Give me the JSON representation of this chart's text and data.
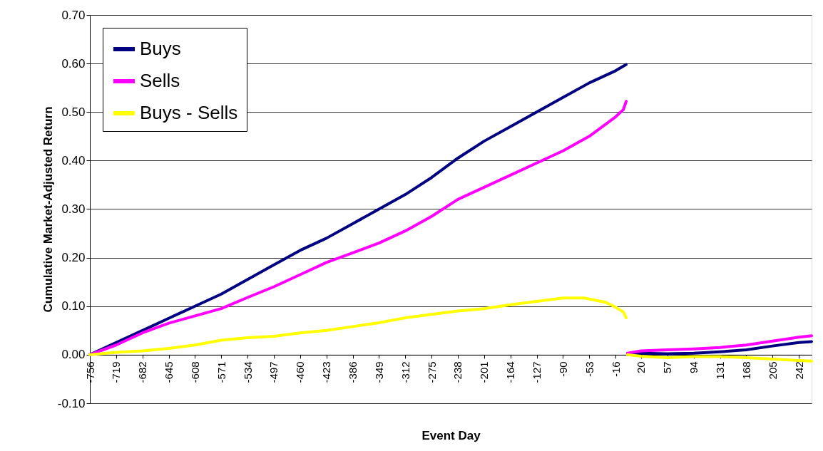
{
  "chart_data": {
    "type": "line",
    "xlabel": "Event Day",
    "ylabel": "Cumulative Market-Adjusted Return",
    "series": [
      {
        "name": "Buys",
        "color": "#000080",
        "x": [
          -756,
          -719,
          -682,
          -645,
          -608,
          -571,
          -534,
          -497,
          -460,
          -423,
          -386,
          -349,
          -312,
          -275,
          -238,
          -201,
          -164,
          -127,
          -90,
          -53,
          -16,
          -1,
          0,
          1,
          20,
          57,
          94,
          131,
          168,
          205,
          242,
          260
        ],
        "values": [
          0,
          0.025,
          0.05,
          0.075,
          0.1,
          0.125,
          0.155,
          0.185,
          0.215,
          0.24,
          0.27,
          0.3,
          0.33,
          0.365,
          0.405,
          0.44,
          0.47,
          0.5,
          0.53,
          0.56,
          0.585,
          0.598,
          null,
          0.0,
          0.003,
          0.002,
          0.003,
          0.006,
          0.01,
          0.018,
          0.025,
          0.027
        ]
      },
      {
        "name": "Sells",
        "color": "#ff00ff",
        "x": [
          -756,
          -719,
          -682,
          -645,
          -608,
          -571,
          -534,
          -497,
          -460,
          -423,
          -386,
          -349,
          -312,
          -275,
          -238,
          -201,
          -164,
          -127,
          -90,
          -53,
          -16,
          -5,
          -1,
          0,
          1,
          20,
          57,
          94,
          131,
          168,
          205,
          242,
          260
        ],
        "values": [
          0,
          0.02,
          0.045,
          0.065,
          0.08,
          0.095,
          0.118,
          0.14,
          0.165,
          0.19,
          0.21,
          0.23,
          0.255,
          0.285,
          0.32,
          0.345,
          0.37,
          0.395,
          0.42,
          0.45,
          0.49,
          0.505,
          0.522,
          null,
          0.003,
          0.008,
          0.01,
          0.012,
          0.015,
          0.02,
          0.028,
          0.036,
          0.039
        ]
      },
      {
        "name": "Buys - Sells",
        "color": "#ffff00",
        "x": [
          -756,
          -719,
          -682,
          -645,
          -608,
          -571,
          -534,
          -497,
          -460,
          -423,
          -386,
          -349,
          -312,
          -275,
          -238,
          -201,
          -164,
          -127,
          -90,
          -60,
          -30,
          -16,
          -5,
          -1,
          0,
          1,
          20,
          57,
          94,
          131,
          168,
          205,
          242,
          260
        ],
        "values": [
          0,
          0.005,
          0.008,
          0.013,
          0.02,
          0.03,
          0.035,
          0.038,
          0.045,
          0.05,
          0.058,
          0.066,
          0.076,
          0.083,
          0.09,
          0.095,
          0.103,
          0.11,
          0.117,
          0.117,
          0.108,
          0.098,
          0.088,
          0.076,
          null,
          0.0,
          -0.003,
          -0.006,
          -0.004,
          -0.004,
          -0.006,
          -0.009,
          -0.012,
          -0.013
        ]
      }
    ],
    "xlim": [
      -756,
      260
    ],
    "xticks": [
      -756,
      -719,
      -682,
      -645,
      -608,
      -571,
      -534,
      -497,
      -460,
      -423,
      -386,
      -349,
      -312,
      -275,
      -238,
      -201,
      -164,
      -127,
      -90,
      -53,
      -16,
      20,
      57,
      94,
      131,
      168,
      205,
      242
    ],
    "ylim": [
      -0.1,
      0.7
    ],
    "yticks": [
      {
        "value": -0.1,
        "label": "-0.10"
      },
      {
        "value": 0,
        "label": "0.00"
      },
      {
        "value": 0.1,
        "label": "0.10"
      },
      {
        "value": 0.2,
        "label": "0.20"
      },
      {
        "value": 0.3,
        "label": "0.30"
      },
      {
        "value": 0.4,
        "label": "0.40"
      },
      {
        "value": 0.5,
        "label": "0.50"
      },
      {
        "value": 0.6,
        "label": "0.60"
      },
      {
        "value": 0.7,
        "label": "0.70"
      }
    ],
    "grid": "y",
    "legend": "top left",
    "marker": "none",
    "line_style": "solid"
  }
}
